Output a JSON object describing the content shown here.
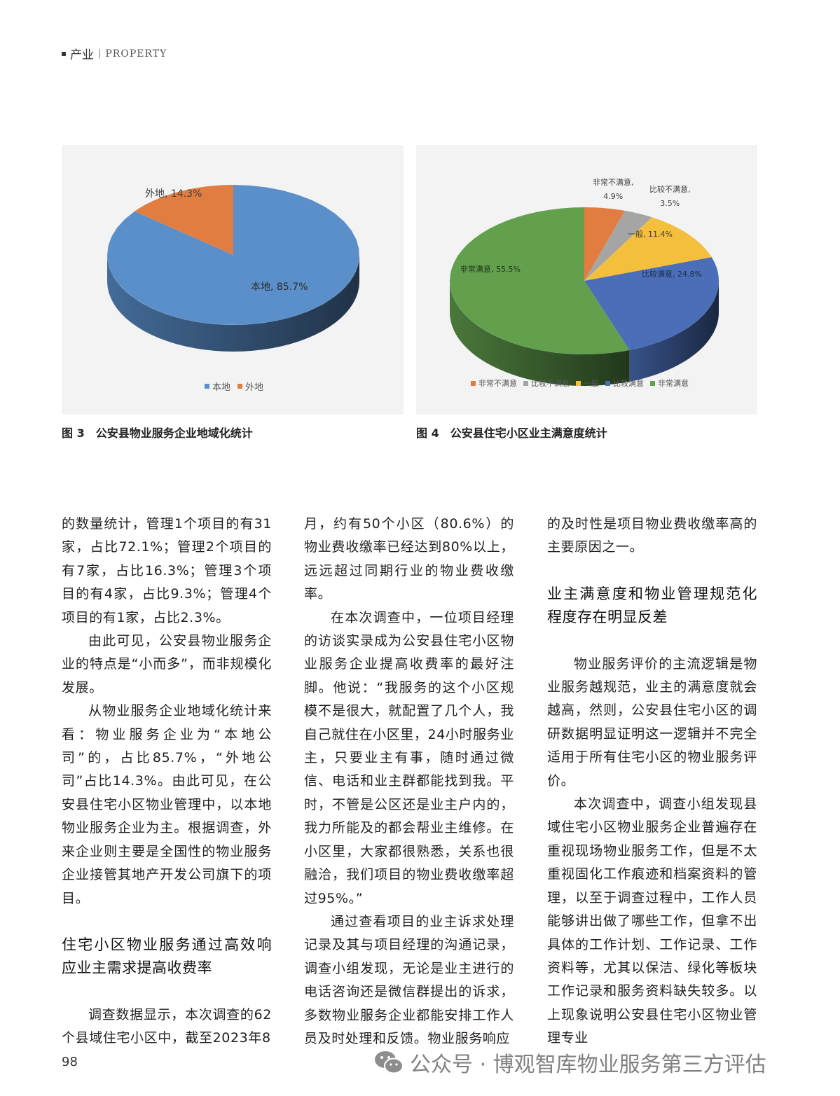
{
  "header": {
    "section": "产业",
    "separator": "|",
    "section_en": "PROPERTY"
  },
  "figure3": {
    "caption": "图 3　公安县物业服务企业地域化统计"
  },
  "figure4": {
    "caption": "图 4　公安县住宅小区业主满意度统计"
  },
  "chart_data": [
    {
      "type": "pie",
      "style": "3d",
      "start": "top",
      "direction": "clockwise",
      "slices": [
        {
          "label": "本地",
          "value": 85.7,
          "data_label": "本地, 85.7%",
          "color": "#5b8fca"
        },
        {
          "label": "外地",
          "value": 14.3,
          "data_label": "外地, 14.3%",
          "color": "#e27d42"
        }
      ],
      "legend": [
        "本地",
        "外地"
      ],
      "legend_position": "bottom"
    },
    {
      "type": "pie",
      "style": "3d",
      "start": "top",
      "direction": "clockwise",
      "slices": [
        {
          "label": "非常不满意",
          "value": 4.9,
          "data_label_1": "非常不满意,",
          "data_label_2": "4.9%",
          "color": "#e27d42"
        },
        {
          "label": "比较不满意",
          "value": 3.5,
          "data_label_1": "比较不满意,",
          "data_label_2": "3.5%",
          "color": "#a5a5a5"
        },
        {
          "label": "一般",
          "value": 11.4,
          "data_label": "一般, 11.4%",
          "color": "#f4bf3c"
        },
        {
          "label": "比较满意",
          "value": 24.8,
          "data_label": "比较满意, 24.8%",
          "color": "#4a6fb8"
        },
        {
          "label": "非常满意",
          "value": 55.5,
          "data_label": "非常满意, 55.5%",
          "color": "#62a04e"
        }
      ],
      "legend": [
        "非常不满意",
        "比较不满意",
        "一般",
        "比较满意",
        "非常满意"
      ],
      "legend_position": "bottom"
    }
  ],
  "columns": [
    [
      {
        "t": "p",
        "ni": true,
        "text": "的数量统计，管理1个项目的有31家，占比72.1%；管理2个项目的有7家，占比16.3%；管理3个项目的有4家，占比9.3%；管理4个项目的有1家，占比2.3%。"
      },
      {
        "t": "p",
        "text": "由此可见，公安县物业服务企业的特点是“小而多”，而非规模化发展。"
      },
      {
        "t": "p",
        "text": "从物业服务企业地域化统计来看：物业服务企业为“本地公司”的，占比85.7%，“外地公司”占比14.3%。由此可见，在公安县住宅小区物业管理中，以本地物业服务企业为主。根据调查，外来企业则主要是全国性的物业服务企业接管其地产开发公司旗下的项目。"
      },
      {
        "t": "gap"
      },
      {
        "t": "h",
        "text": "住宅小区物业服务通过高效响应业主需求提高收费率"
      },
      {
        "t": "gap"
      },
      {
        "t": "p",
        "text": "调查数据显示，本次调查的62个县域住宅小区中，截至2023年8"
      }
    ],
    [
      {
        "t": "p",
        "ni": true,
        "text": "月，约有50个小区（80.6%）的物业费收缴率已经达到80%以上，远远超过同期行业的物业费收缴率。"
      },
      {
        "t": "p",
        "text": "在本次调查中，一位项目经理的访谈实录成为公安县住宅小区物业服务企业提高收费率的最好注脚。他说：“我服务的这个小区规模不是很大，就配置了几个人，我自己就住在小区里，24小时服务业主，只要业主有事，随时通过微信、电话和业主群都能找到我。平时，不管是公区还是业主户内的，我力所能及的都会帮业主维修。在小区里，大家都很熟悉，关系也很融洽，我们项目的物业费收缴率超过95%。”"
      },
      {
        "t": "p",
        "text": "通过查看项目的业主诉求处理记录及其与项目经理的沟通记录，调查小组发现，无论是业主进行的电话咨询还是微信群提出的诉求，多数物业服务企业都能安排工作人员及时处理和反馈。物业服务响应"
      }
    ],
    [
      {
        "t": "p",
        "ni": true,
        "text": "的及时性是项目物业费收缴率高的主要原因之一。"
      },
      {
        "t": "gap"
      },
      {
        "t": "h",
        "text": "业主满意度和物业管理规范化程度存在明显反差"
      },
      {
        "t": "gap"
      },
      {
        "t": "p",
        "text": "物业服务评价的主流逻辑是物业服务越规范，业主的满意度就会越高，然则，公安县住宅小区的调研数据明显证明这一逻辑并不完全适用于所有住宅小区的物业服务评价。"
      },
      {
        "t": "p",
        "text": "本次调查中，调查小组发现县域住宅小区物业服务企业普遍存在重视现场物业服务工作，但是不太重视固化工作痕迹和档案资料的管理，以至于调查过程中，工作人员能够讲出做了哪些工作，但拿不出具体的工作计划、工作记录、工作资料等，尤其以保洁、绿化等板块工作记录和服务资料缺失较多。以上现象说明公安县住宅小区物业管理专业"
      }
    ]
  ],
  "page_number": "98",
  "watermark": {
    "icon": "wechat-icon",
    "text": "公众号 · 博观智库物业服务第三方评估"
  }
}
